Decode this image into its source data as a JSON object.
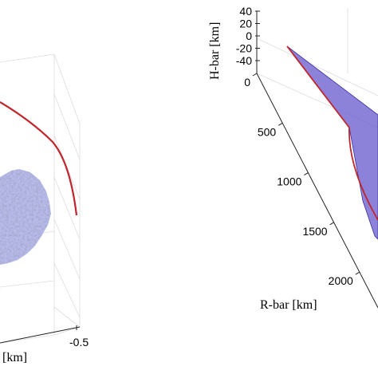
{
  "chart_data": [
    {
      "type": "scatter",
      "subtype": "3d-surface-with-trajectory",
      "axis_fragments": {
        "x_tick": "-0.5",
        "x_label_fragment": "[km]"
      },
      "trajectory_color": "#c0262c",
      "body_color": "#b8bbea",
      "grid": true
    },
    {
      "type": "area",
      "subtype": "3d-fan-with-trajectory",
      "hbar": {
        "label": "H-bar [km]",
        "ticks": [
          "40",
          "20",
          "0",
          "-20",
          "-40"
        ],
        "values": [
          40,
          20,
          0,
          -20,
          -40
        ]
      },
      "rbar": {
        "label": "R-bar [km]",
        "ticks": [
          "0",
          "500",
          "1000",
          "1500",
          "2000"
        ],
        "values": [
          0,
          500,
          1000,
          1500,
          2000
        ]
      },
      "fan_color": "#6b5fd0",
      "trajectory_color": "#c0262c",
      "grid": true
    }
  ]
}
